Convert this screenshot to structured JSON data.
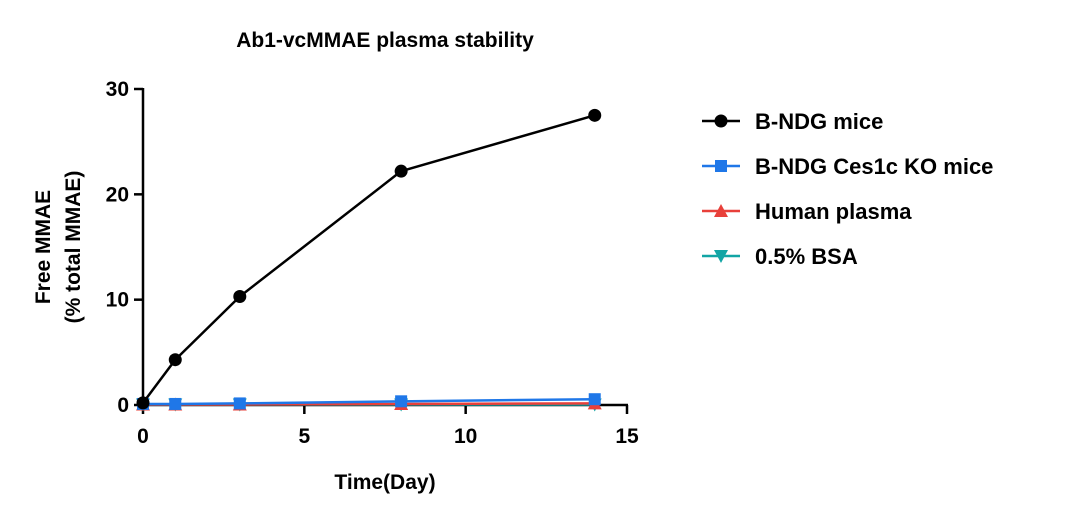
{
  "chart_data": {
    "type": "line",
    "title": "Ab1-vcMMAE plasma stability",
    "xlabel": "Time(Day)",
    "ylabel_line1": "Free MMAE",
    "ylabel_line2": "(% total MMAE)",
    "xlim": [
      0,
      15
    ],
    "ylim": [
      0,
      30
    ],
    "x_ticks": [
      0,
      5,
      10,
      15
    ],
    "y_ticks": [
      0,
      10,
      20,
      30
    ],
    "grid": false,
    "legend_position": "right",
    "series": [
      {
        "name": "B-NDG mice",
        "color": "#000000",
        "marker": "circle",
        "x": [
          0,
          1,
          3,
          8,
          14
        ],
        "y": [
          0.2,
          4.3,
          10.3,
          22.2,
          27.5
        ]
      },
      {
        "name": "B-NDG Ces1c KO mice",
        "color": "#1f77e8",
        "marker": "square",
        "x": [
          0,
          1,
          3,
          8,
          14
        ],
        "y": [
          0.1,
          0.1,
          0.15,
          0.35,
          0.55
        ]
      },
      {
        "name": "Human plasma",
        "color": "#e8403a",
        "marker": "triangle-up",
        "x": [
          0,
          1,
          3,
          8,
          14
        ],
        "y": [
          0.05,
          0.05,
          0.05,
          0.1,
          0.15
        ]
      },
      {
        "name": "0.5% BSA",
        "color": "#12a5a5",
        "marker": "triangle-down",
        "x": [
          0,
          1,
          3,
          8,
          14
        ],
        "y": [
          0.05,
          0.05,
          0.05,
          0.05,
          0.05
        ]
      }
    ]
  }
}
